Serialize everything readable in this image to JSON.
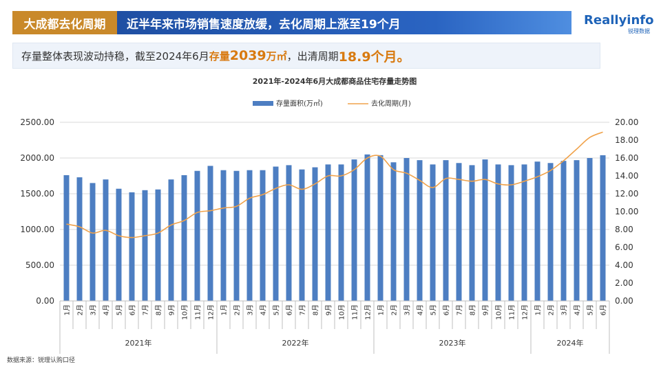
{
  "header": {
    "tag": "大成都去化周期",
    "title": "近半年来市场销售速度放缓，去化周期上涨至19个月"
  },
  "logo": {
    "main": "Reallyinfo",
    "sub": "锐理数据"
  },
  "summary": {
    "prefix": "存量整体表现波动持稳，截至2024年6月",
    "stock_label": "存量",
    "stock_value": "2039",
    "stock_unit": "万㎡",
    "middle": "，出清周期",
    "cycle_value": "18.9个月。"
  },
  "source": "数据来源：锐理认购口径",
  "colors": {
    "bar": "#4d7ec2",
    "line": "#f0a24a",
    "tag": "#c9892a",
    "header": "#2a64c2",
    "highlight": "#d87a10"
  },
  "chart_data": {
    "type": "bar",
    "title": "2021年-2024年6月大成都商品住宅存量走势图",
    "legend": {
      "placement": "top",
      "bar_label": "存量面积(万㎡)",
      "line_label": "去化周期(月)"
    },
    "years": [
      {
        "label": "2021年",
        "months": 12
      },
      {
        "label": "2022年",
        "months": 12
      },
      {
        "label": "2023年",
        "months": 12
      },
      {
        "label": "2024年",
        "months": 6
      }
    ],
    "categories": [
      "1月",
      "2月",
      "3月",
      "4月",
      "5月",
      "6月",
      "7月",
      "8月",
      "9月",
      "10月",
      "11月",
      "12月",
      "1月",
      "2月",
      "3月",
      "4月",
      "5月",
      "6月",
      "7月",
      "8月",
      "9月",
      "10月",
      "11月",
      "12月",
      "1月",
      "2月",
      "3月",
      "4月",
      "5月",
      "6月",
      "7月",
      "8月",
      "9月",
      "10月",
      "11月",
      "12月",
      "1月",
      "2月",
      "3月",
      "4月",
      "5月",
      "6月"
    ],
    "series": [
      {
        "name": "存量面积(万㎡)",
        "type": "bar",
        "axis": "left",
        "values": [
          1760,
          1730,
          1650,
          1700,
          1570,
          1520,
          1550,
          1560,
          1700,
          1760,
          1820,
          1890,
          1830,
          1820,
          1830,
          1830,
          1880,
          1900,
          1840,
          1870,
          1910,
          1910,
          1980,
          2050,
          2040,
          1940,
          2000,
          1970,
          1910,
          1970,
          1930,
          1900,
          1980,
          1910,
          1900,
          1910,
          1950,
          1930,
          1960,
          1970,
          2000,
          2039
        ]
      },
      {
        "name": "去化周期(月)",
        "type": "line",
        "axis": "right",
        "values": [
          8.6,
          8.3,
          7.6,
          7.9,
          7.3,
          7.1,
          7.3,
          7.6,
          8.5,
          9.0,
          9.9,
          10.1,
          10.4,
          10.6,
          11.5,
          11.9,
          12.6,
          13.0,
          12.5,
          13.1,
          14.0,
          14.0,
          14.7,
          16.0,
          16.2,
          14.7,
          14.3,
          13.5,
          12.7,
          13.7,
          13.6,
          13.4,
          13.6,
          13.1,
          13.0,
          13.4,
          13.9,
          14.6,
          15.7,
          17.0,
          18.3,
          18.9
        ]
      }
    ],
    "y_left": {
      "min": 0,
      "max": 2500,
      "ticks": [
        "0.00",
        "500.00",
        "1000.00",
        "1500.00",
        "2000.00",
        "2500.00"
      ]
    },
    "y_right": {
      "min": 0,
      "max": 20,
      "ticks": [
        "0.00",
        "2.00",
        "4.00",
        "6.00",
        "8.00",
        "10.00",
        "12.00",
        "14.00",
        "16.00",
        "18.00",
        "20.00"
      ]
    },
    "grid": true
  }
}
